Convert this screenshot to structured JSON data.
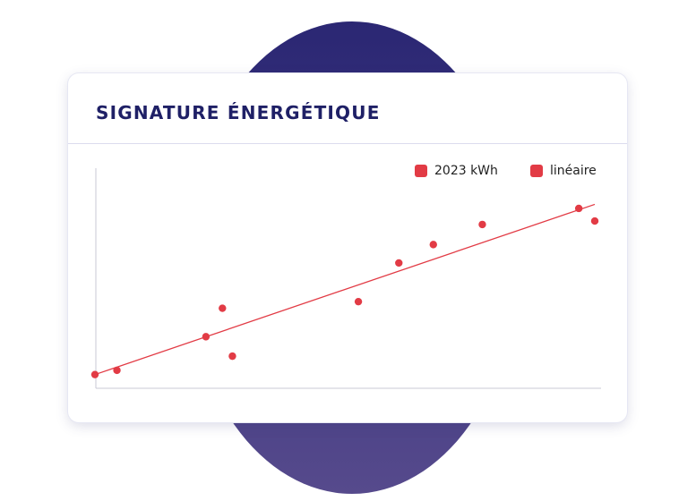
{
  "title": "SIGNATURE ÉNERGÉTIQUE",
  "colors": {
    "accent": "#e23b45",
    "title": "#1f2066",
    "backdrop": "#2b2773",
    "axis": "#c9c9d6"
  },
  "chart_data": {
    "type": "scatter",
    "title": "SIGNATURE ÉNERGÉTIQUE",
    "xlabel": "",
    "ylabel": "",
    "xlim": [
      0,
      100
    ],
    "ylim": [
      0,
      100
    ],
    "grid": false,
    "legend_position": "top-right",
    "series": [
      {
        "name": "2023 kWh",
        "kind": "scatter",
        "x": [
          0,
          4.4,
          22.2,
          25.5,
          27.5,
          52.7,
          60.8,
          67.7,
          77.5,
          96.8,
          100
        ],
        "y": [
          3.9,
          5.9,
          21.6,
          34.9,
          12.5,
          38.0,
          56.1,
          64.7,
          74.1,
          81.6,
          75.7
        ]
      },
      {
        "name": "linéaire",
        "kind": "line",
        "x": [
          0,
          100
        ],
        "y": [
          3.9,
          83.5
        ]
      }
    ]
  }
}
